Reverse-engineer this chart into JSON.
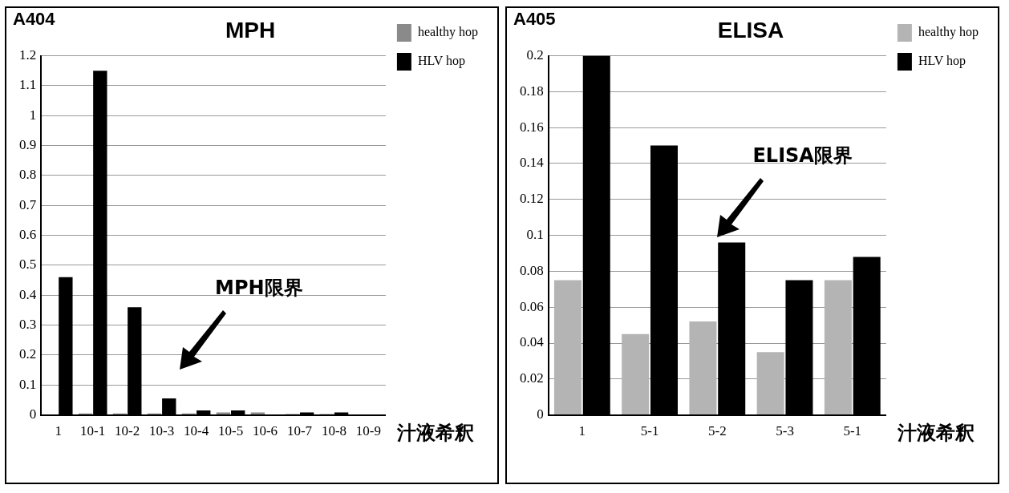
{
  "chart_data": [
    {
      "type": "bar",
      "title": "MPH",
      "ylabel": "A404",
      "xlabel": "汁液希釈",
      "categories": [
        "1",
        "10-1",
        "10-2",
        "10-3",
        "10-4",
        "10-5",
        "10-6",
        "10-7",
        "10-8",
        "10-9"
      ],
      "series": [
        {
          "name": "healthy hop",
          "color": "#8a8a8a",
          "values": [
            0,
            0.005,
            0.005,
            0.005,
            0.005,
            0.008,
            0.008,
            0.003,
            0.003,
            0
          ]
        },
        {
          "name": "HLV hop",
          "color": "#000000",
          "values": [
            0.46,
            1.15,
            0.36,
            0.055,
            0.015,
            0.015,
            null,
            0.008,
            0.008,
            0
          ]
        }
      ],
      "ylim": [
        0,
        1.2
      ],
      "yticks": [
        0,
        0.1,
        0.2,
        0.3,
        0.4,
        0.5,
        0.6,
        0.7,
        0.8,
        0.9,
        1,
        1.1,
        1.2
      ],
      "annotations": [
        "MPH限界"
      ],
      "grid": "y",
      "legend": "top right"
    },
    {
      "type": "bar",
      "title": "ELISA",
      "ylabel": "A405",
      "xlabel": "汁液希釈",
      "categories": [
        "1",
        "5-1",
        "5-2",
        "5-3",
        "5-1"
      ],
      "series": [
        {
          "name": "healthy hop",
          "color": "#b4b4b4",
          "values": [
            0.075,
            0.045,
            0.052,
            0.035,
            0.075
          ]
        },
        {
          "name": "HLV hop",
          "color": "#000000",
          "values": [
            0.2,
            0.15,
            0.096,
            0.075,
            0.088
          ]
        }
      ],
      "ylim": [
        0,
        0.2
      ],
      "yticks": [
        0,
        0.02,
        0.04,
        0.06,
        0.08,
        0.1,
        0.12,
        0.14,
        0.16,
        0.18,
        0.2
      ],
      "annotations": [
        "ELISA限界"
      ],
      "grid": "y",
      "legend": "top right"
    }
  ]
}
